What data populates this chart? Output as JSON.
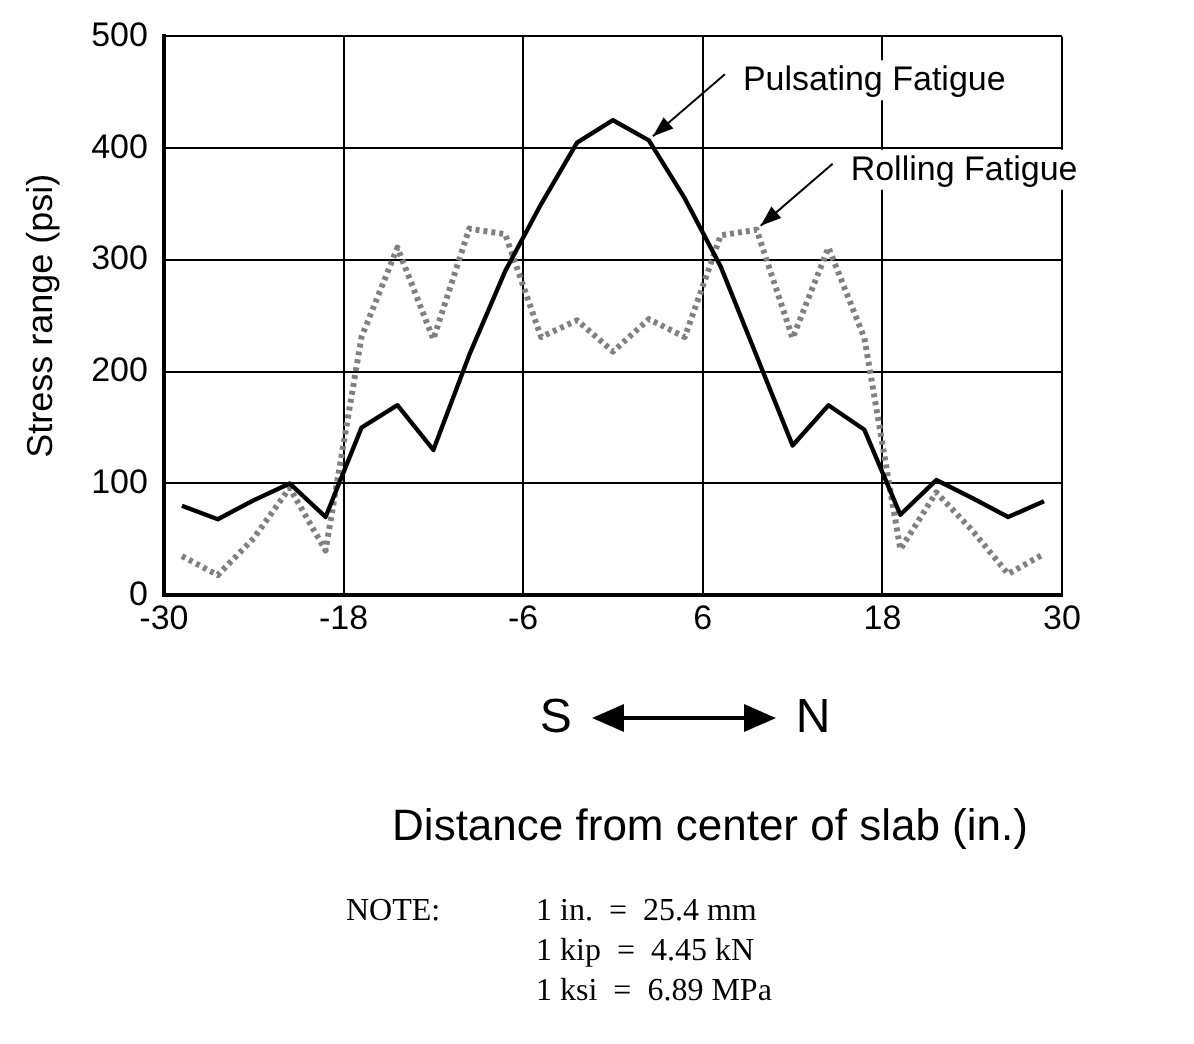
{
  "chart_data": {
    "type": "line",
    "x": [
      -28.8,
      -26.4,
      -24,
      -21.6,
      -19.2,
      -16.8,
      -14.4,
      -12,
      -9.6,
      -7.2,
      -4.8,
      -2.4,
      0,
      2.4,
      4.8,
      7.2,
      9.6,
      12,
      14.4,
      16.8,
      19.2,
      21.6,
      24,
      26.4,
      28.8
    ],
    "series": [
      {
        "color": "#000000",
        "line_style": "solid",
        "values": [
          80,
          68,
          85,
          100,
          70,
          150,
          170,
          130,
          215,
          290,
          350,
          405,
          425,
          407,
          355,
          294,
          214,
          134,
          170,
          148,
          72,
          103,
          87,
          70,
          84
        ]
      },
      {
        "color": "#808080",
        "line_style": "dotted",
        "values": [
          35,
          18,
          51,
          96,
          40,
          231,
          311,
          229,
          328,
          323,
          231,
          246,
          218,
          247,
          231,
          322,
          327,
          230,
          311,
          230,
          41,
          92,
          58,
          19,
          37
        ]
      }
    ],
    "xlabel": "Distance from center of slab (in.)",
    "ylabel": "Stress range (psi)",
    "xlim": [
      -30,
      30
    ],
    "xticks": [
      -30,
      -18,
      -6,
      6,
      18,
      30
    ],
    "ylim": [
      0,
      500
    ],
    "yticks": [
      0,
      100,
      200,
      300,
      400,
      500
    ],
    "grid": true,
    "marker": "none",
    "annotations": [
      {
        "text": "Pulsating Fatigue",
        "x": 2.4,
        "y": 407
      },
      {
        "text": "Rolling Fatigue",
        "x": 9.6,
        "y": 327
      },
      "S",
      "N",
      "NOTE:",
      "1 in.  =  25.4 mm",
      "1 kip  =  4.45 kN",
      "1 ksi  =  6.89 MPa"
    ]
  }
}
